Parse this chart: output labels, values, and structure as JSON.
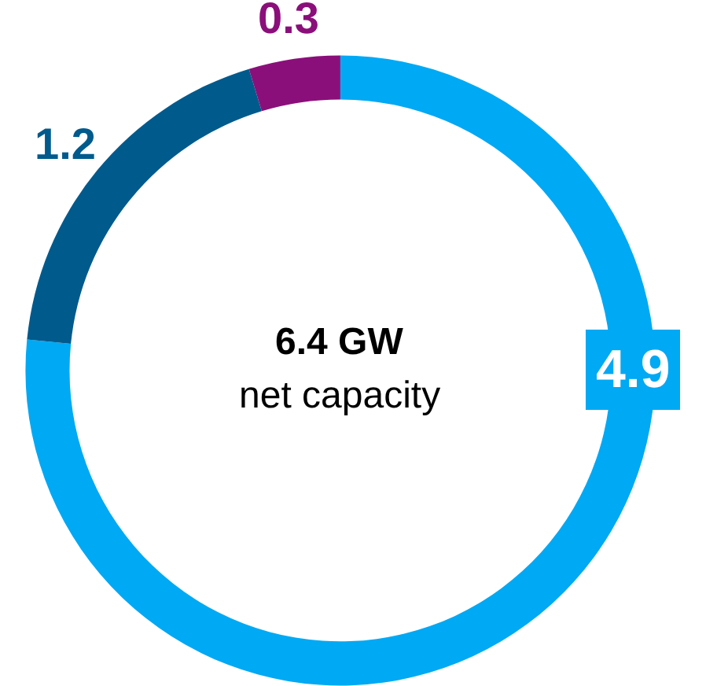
{
  "chart_data": {
    "type": "donut",
    "title": "6.4 GW",
    "subtitle": "net capacity",
    "categories": [
      null,
      null,
      null
    ],
    "values": [
      4.9,
      1.2,
      0.3
    ],
    "colors": [
      "#00a9f4",
      "#005a8c",
      "#8b0f7a"
    ],
    "data_labels": true,
    "legend": false
  }
}
